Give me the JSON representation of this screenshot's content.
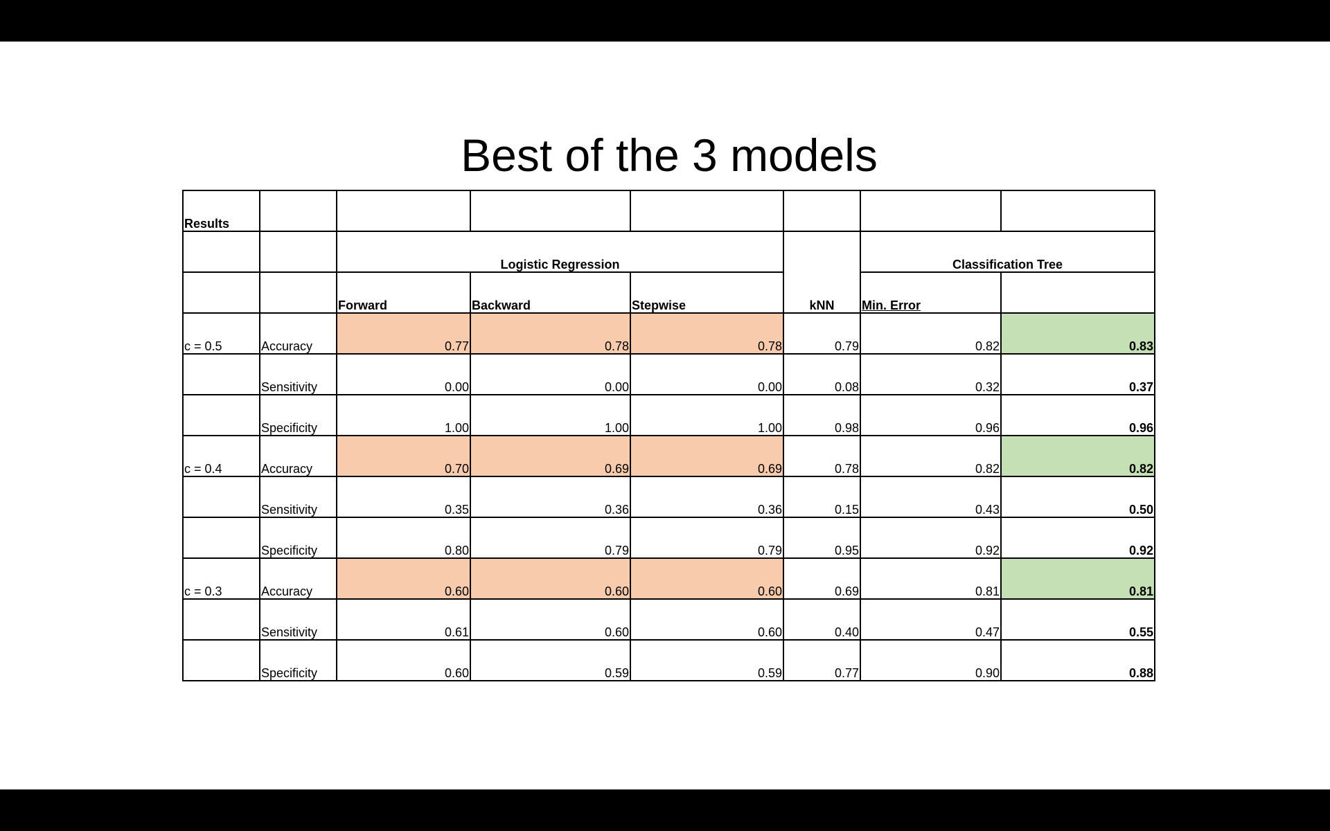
{
  "slide": {
    "title": "Best of the 3 models"
  },
  "table": {
    "corner_label": "Results",
    "groups": {
      "logistic": "Logistic Regression",
      "knn": "kNN",
      "tree": "Classification Tree"
    },
    "subheaders": {
      "forward": "Forward",
      "backward": "Backward",
      "stepwise": "Stepwise",
      "min_error": "Min. Error",
      "best_pruned": ""
    },
    "rows": [
      {
        "cutoff": "c = 0.5",
        "metric": "Accuracy",
        "forward": "0.77",
        "backward": "0.78",
        "stepwise": "0.78",
        "knn": "0.79",
        "min_error": "0.82",
        "best_pruned": "0.83"
      },
      {
        "cutoff": "",
        "metric": "Sensitivity",
        "forward": "0.00",
        "backward": "0.00",
        "stepwise": "0.00",
        "knn": "0.08",
        "min_error": "0.32",
        "best_pruned": "0.37"
      },
      {
        "cutoff": "",
        "metric": "Specificity",
        "forward": "1.00",
        "backward": "1.00",
        "stepwise": "1.00",
        "knn": "0.98",
        "min_error": "0.96",
        "best_pruned": "0.96"
      },
      {
        "cutoff": "c = 0.4",
        "metric": "Accuracy",
        "forward": "0.70",
        "backward": "0.69",
        "stepwise": "0.69",
        "knn": "0.78",
        "min_error": "0.82",
        "best_pruned": "0.82"
      },
      {
        "cutoff": "",
        "metric": "Sensitivity",
        "forward": "0.35",
        "backward": "0.36",
        "stepwise": "0.36",
        "knn": "0.15",
        "min_error": "0.43",
        "best_pruned": "0.50"
      },
      {
        "cutoff": "",
        "metric": "Specificity",
        "forward": "0.80",
        "backward": "0.79",
        "stepwise": "0.79",
        "knn": "0.95",
        "min_error": "0.92",
        "best_pruned": "0.92"
      },
      {
        "cutoff": "c = 0.3",
        "metric": "Accuracy",
        "forward": "0.60",
        "backward": "0.60",
        "stepwise": "0.60",
        "knn": "0.69",
        "min_error": "0.81",
        "best_pruned": "0.81"
      },
      {
        "cutoff": "",
        "metric": "Sensitivity",
        "forward": "0.61",
        "backward": "0.60",
        "stepwise": "0.60",
        "knn": "0.40",
        "min_error": "0.47",
        "best_pruned": "0.55"
      },
      {
        "cutoff": "",
        "metric": "Specificity",
        "forward": "0.60",
        "backward": "0.59",
        "stepwise": "0.59",
        "knn": "0.77",
        "min_error": "0.90",
        "best_pruned": "0.88"
      }
    ],
    "highlight_colors": {
      "logistic_accuracy": "#f8cbad",
      "best_accuracy": "#c5e0b4"
    }
  }
}
